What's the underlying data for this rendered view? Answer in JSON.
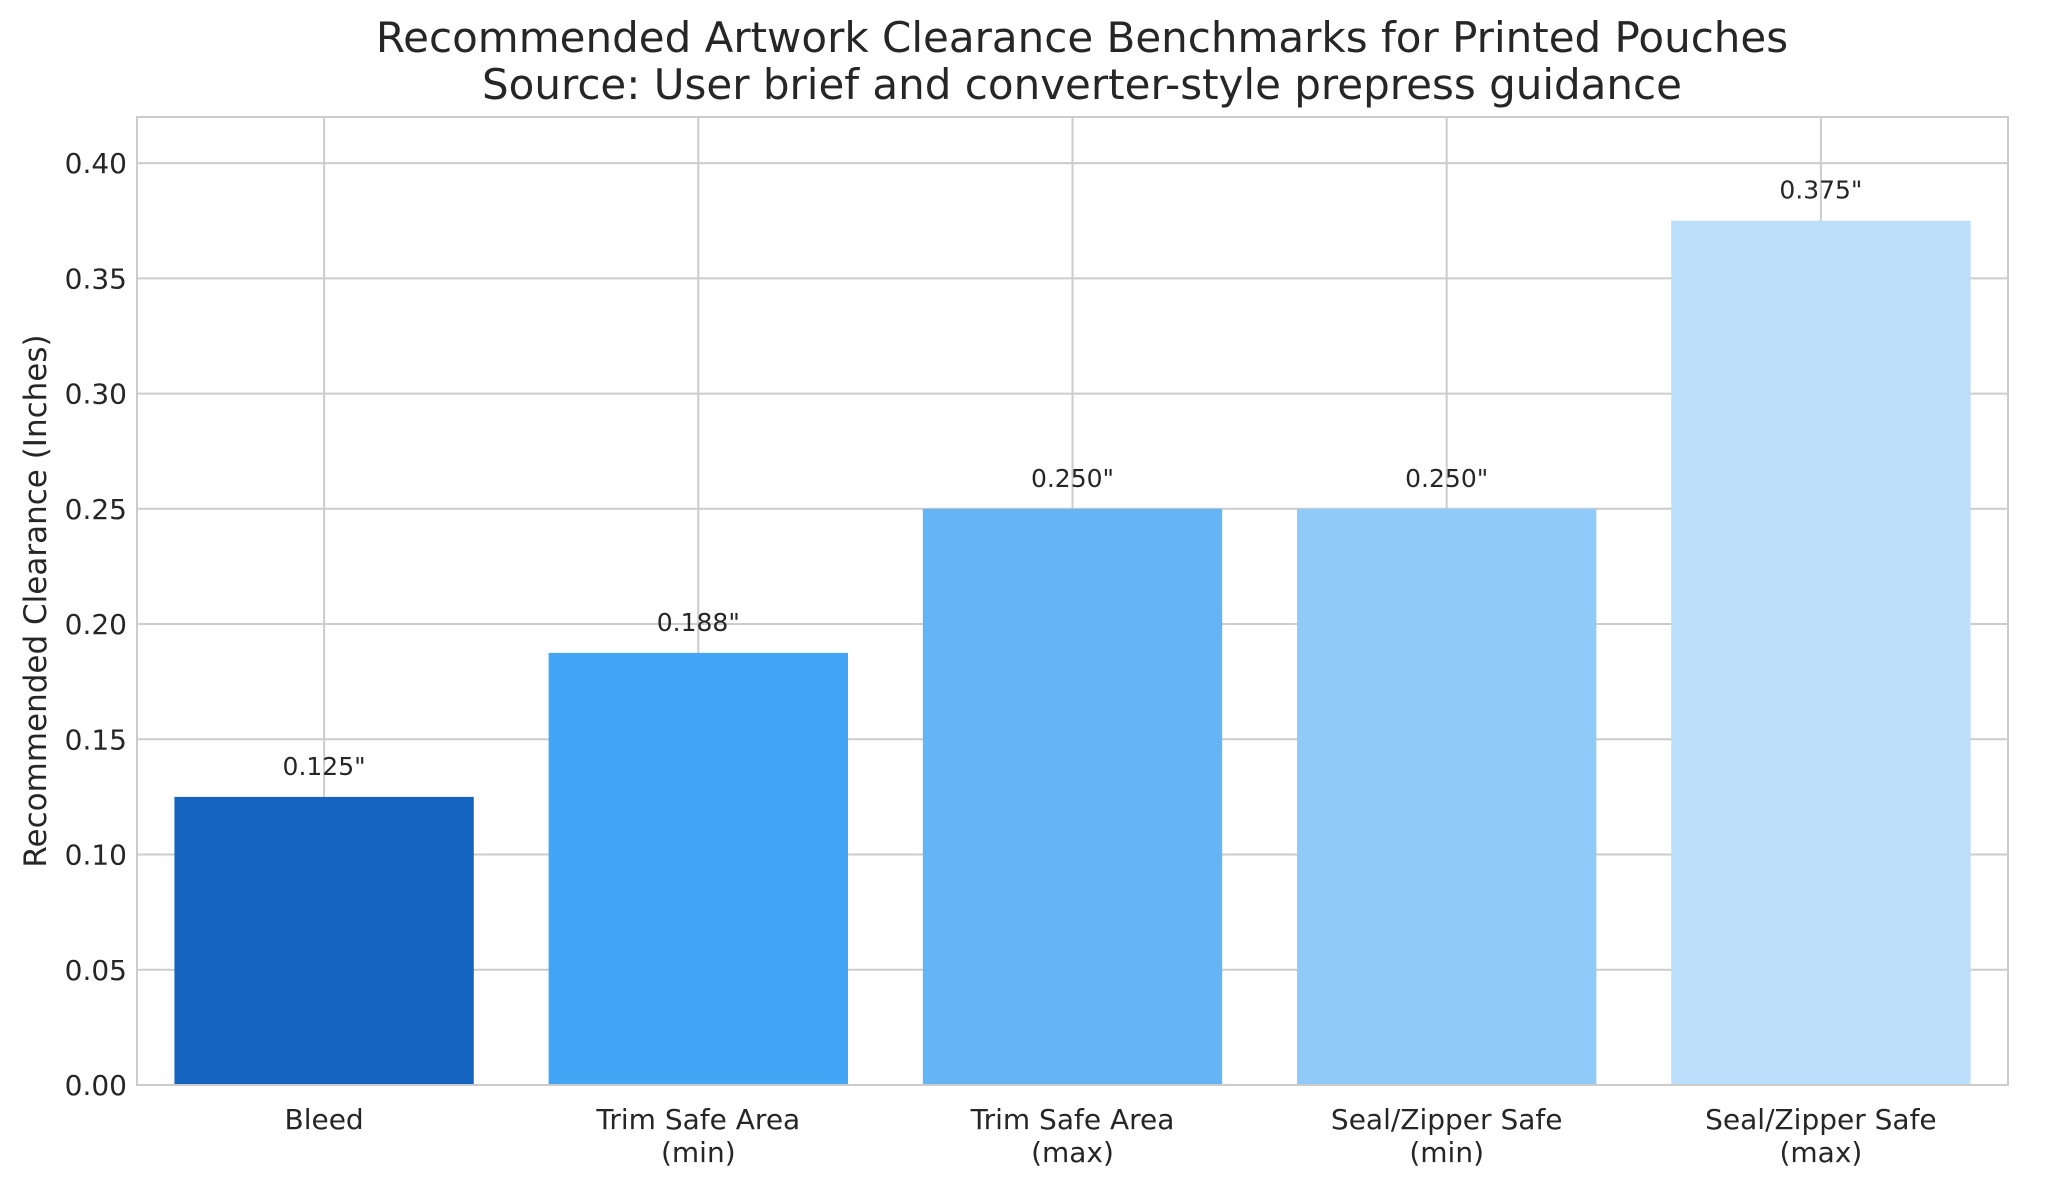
{
  "chart_data": {
    "type": "bar",
    "title": "Recommended Artwork Clearance Benchmarks for Printed Pouches",
    "subtitle": "Source: User brief and converter-style prepress guidance",
    "xlabel": "",
    "ylabel": "Recommended Clearance (Inches)",
    "ylim": [
      0,
      0.42
    ],
    "yticks": [
      "0.00",
      "0.05",
      "0.10",
      "0.15",
      "0.20",
      "0.25",
      "0.30",
      "0.35",
      "0.40"
    ],
    "grid": true,
    "categories": [
      [
        "Bleed"
      ],
      [
        "Trim Safe Area",
        "(min)"
      ],
      [
        "Trim Safe Area",
        "(max)"
      ],
      [
        "Seal/Zipper Safe",
        "(min)"
      ],
      [
        "Seal/Zipper Safe",
        "(max)"
      ]
    ],
    "values": [
      0.125,
      0.1875,
      0.25,
      0.25,
      0.375
    ],
    "data_labels": [
      "0.125\"",
      "0.188\"",
      "0.250\"",
      "0.250\"",
      "0.375\""
    ],
    "colors": [
      "#1565c0",
      "#42a5f5",
      "#64b5f6",
      "#90caf9",
      "#bbdefb"
    ]
  }
}
